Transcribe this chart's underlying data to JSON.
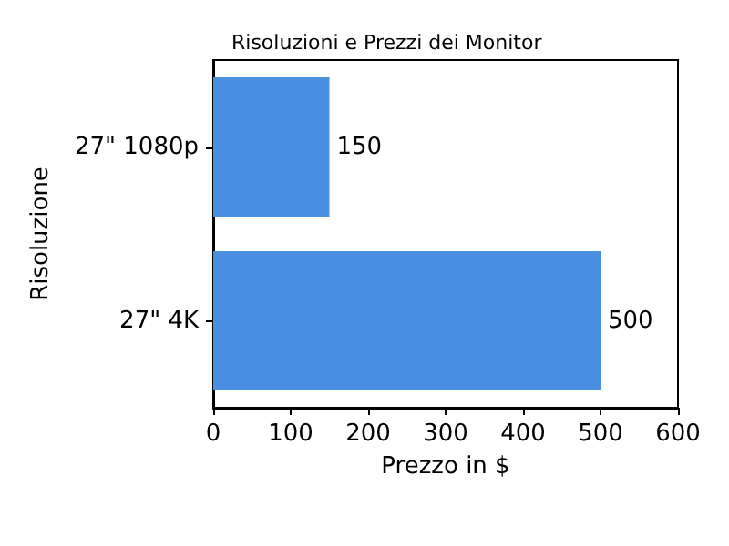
{
  "chart_data": {
    "type": "bar",
    "orientation": "horizontal",
    "title": "Risoluzioni e Prezzi dei Monitor",
    "xlabel": "Prezzo in $",
    "ylabel": "Risoluzione",
    "categories": [
      "27\" 1080p",
      "27\" 4K"
    ],
    "values": [
      150,
      500
    ],
    "color": "#4a90e2",
    "data_labels": true,
    "xlim": [
      0,
      600
    ],
    "xticks": [
      0,
      100,
      200,
      300,
      400,
      500,
      600
    ],
    "grid": false
  }
}
